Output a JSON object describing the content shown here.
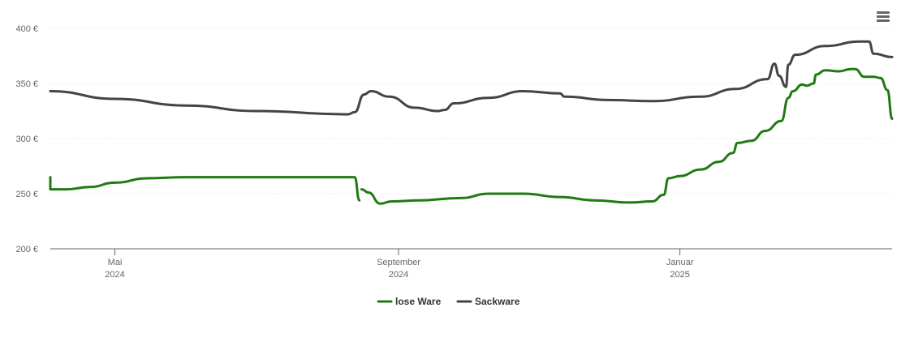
{
  "chart_data": {
    "type": "line",
    "y_axis": {
      "min": 200,
      "max": 400,
      "ticks": [
        {
          "value": 200,
          "label": "200 €"
        },
        {
          "value": 250,
          "label": "250 €"
        },
        {
          "value": 300,
          "label": "300 €"
        },
        {
          "value": 350,
          "label": "350 €"
        },
        {
          "value": 400,
          "label": "400 €"
        }
      ]
    },
    "x_axis": {
      "min": "2024-04-03",
      "max": "2025-04-03",
      "ticks": [
        {
          "date": "2024-05-01",
          "month": "Mai",
          "year": "2024"
        },
        {
          "date": "2024-09-01",
          "month": "September",
          "year": "2024"
        },
        {
          "date": "2025-01-01",
          "month": "Januar",
          "year": "2025"
        }
      ]
    },
    "legend_position": "bottom-center",
    "series": [
      {
        "name": "lose Ware",
        "color": "#1f7a12",
        "segments": [
          [
            [
              "2024-04-03",
              265
            ],
            [
              "2024-04-03",
              254
            ],
            [
              "2024-04-10",
              254
            ],
            [
              "2024-04-20",
              256
            ],
            [
              "2024-05-01",
              260
            ],
            [
              "2024-05-15",
              264
            ],
            [
              "2024-06-01",
              265
            ],
            [
              "2024-07-01",
              265
            ],
            [
              "2024-08-01",
              265
            ],
            [
              "2024-08-13",
              265
            ],
            [
              "2024-08-15",
              244
            ]
          ],
          [
            [
              "2024-08-16",
              254
            ],
            [
              "2024-08-19",
              251
            ],
            [
              "2024-08-24",
              241
            ],
            [
              "2024-08-29",
              243
            ],
            [
              "2024-09-10",
              244
            ],
            [
              "2024-09-28",
              246
            ],
            [
              "2024-10-10",
              250
            ],
            [
              "2024-10-25",
              250
            ],
            [
              "2024-11-10",
              247
            ],
            [
              "2024-11-25",
              244
            ],
            [
              "2024-12-10",
              242
            ],
            [
              "2024-12-20",
              243
            ],
            [
              "2024-12-25",
              249
            ],
            [
              "2024-12-27",
              264
            ],
            [
              "2025-01-01",
              266
            ],
            [
              "2025-01-10",
              272
            ],
            [
              "2025-01-18",
              279
            ],
            [
              "2025-01-24",
              287
            ],
            [
              "2025-01-26",
              296
            ],
            [
              "2025-02-01",
              298
            ],
            [
              "2025-02-07",
              307
            ],
            [
              "2025-02-14",
              316
            ],
            [
              "2025-02-17",
              337
            ],
            [
              "2025-02-19",
              343
            ],
            [
              "2025-02-23",
              349
            ],
            [
              "2025-02-25",
              348
            ],
            [
              "2025-02-28",
              350
            ],
            [
              "2025-03-01",
              358
            ],
            [
              "2025-03-05",
              362
            ],
            [
              "2025-03-11",
              361
            ],
            [
              "2025-03-16",
              363
            ],
            [
              "2025-03-18",
              363
            ],
            [
              "2025-03-22",
              356
            ],
            [
              "2025-03-26",
              356
            ],
            [
              "2025-03-29",
              355
            ],
            [
              "2025-04-01",
              344
            ],
            [
              "2025-04-03",
              318
            ]
          ]
        ]
      },
      {
        "name": "Sackware",
        "color": "#434348",
        "segments": [
          [
            [
              "2024-04-03",
              343
            ],
            [
              "2024-05-01",
              336
            ],
            [
              "2024-06-01",
              330
            ],
            [
              "2024-07-01",
              325
            ],
            [
              "2024-08-10",
              322
            ],
            [
              "2024-08-13",
              324
            ],
            [
              "2024-08-17",
              340
            ],
            [
              "2024-08-20",
              343
            ],
            [
              "2024-08-28",
              338
            ],
            [
              "2024-09-08",
              328
            ],
            [
              "2024-09-18",
              325
            ],
            [
              "2024-09-21",
              326
            ],
            [
              "2024-09-25",
              332
            ],
            [
              "2024-10-10",
              337
            ],
            [
              "2024-10-25",
              343
            ],
            [
              "2024-11-10",
              341
            ],
            [
              "2024-11-12",
              338
            ],
            [
              "2024-12-01",
              335
            ],
            [
              "2024-12-20",
              334
            ],
            [
              "2025-01-10",
              338
            ],
            [
              "2025-01-25",
              345
            ],
            [
              "2025-02-08",
              354
            ],
            [
              "2025-02-11",
              368
            ],
            [
              "2025-02-13",
              357
            ],
            [
              "2025-02-16",
              347
            ],
            [
              "2025-02-17",
              367
            ],
            [
              "2025-02-20",
              376
            ],
            [
              "2025-03-05",
              384
            ],
            [
              "2025-03-20",
              388
            ],
            [
              "2025-03-24",
              388
            ],
            [
              "2025-03-26",
              377
            ],
            [
              "2025-04-03",
              374
            ]
          ]
        ]
      }
    ]
  },
  "icons": {
    "menu": "hamburger-menu-icon"
  }
}
